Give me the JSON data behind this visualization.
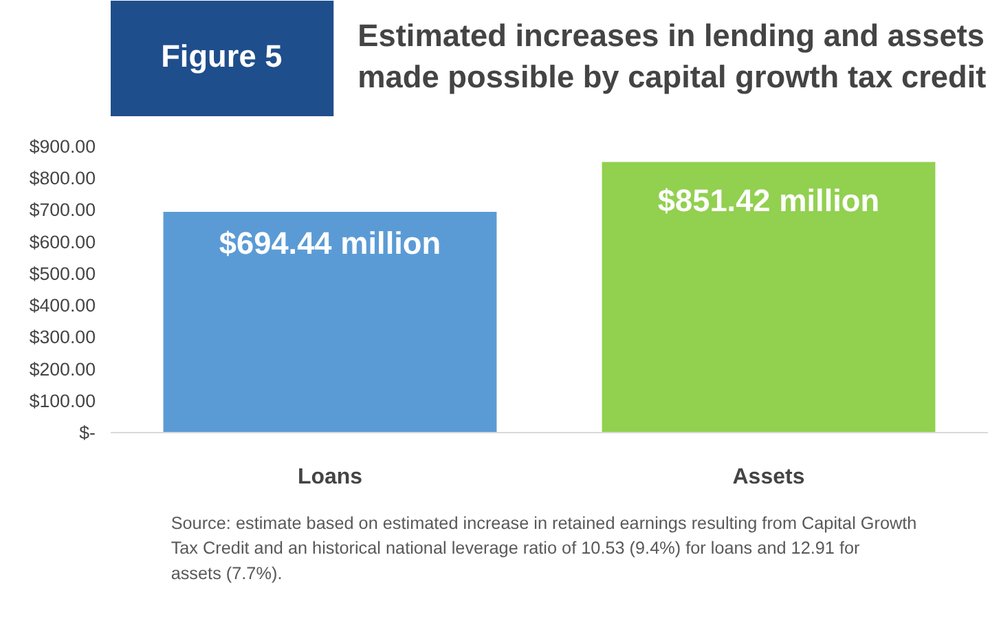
{
  "chart_data": {
    "type": "bar",
    "title": "Estimated increases in lending and assets\nmade possible by capital growth tax credit",
    "categories": [
      "Loans",
      "Assets"
    ],
    "values": [
      694.44,
      851.42
    ],
    "colors": [
      "#5b9bd5",
      "#92d050"
    ],
    "value_labels": [
      "$694.44 million",
      "$851.42 million"
    ],
    "ylim": [
      0,
      900
    ],
    "yticks": [
      {
        "value": 0,
        "label": "$-"
      },
      {
        "value": 100,
        "label": "$100.00"
      },
      {
        "value": 200,
        "label": "$200.00"
      },
      {
        "value": 300,
        "label": "$300.00"
      },
      {
        "value": 400,
        "label": "$400.00"
      },
      {
        "value": 500,
        "label": "$500.00"
      },
      {
        "value": 600,
        "label": "$600.00"
      },
      {
        "value": 700,
        "label": "$700.00"
      },
      {
        "value": 800,
        "label": "$800.00"
      },
      {
        "value": 900,
        "label": "$900.00"
      }
    ],
    "grid": false,
    "annotations": [
      "Figure 5",
      "Source: estimate based on estimated increase in retained earnings resulting from Capital Growth Tax Credit and an historical national leverage ratio of 10.53 (9.4%) for loans and 12.91 for assets (7.7%)."
    ]
  }
}
